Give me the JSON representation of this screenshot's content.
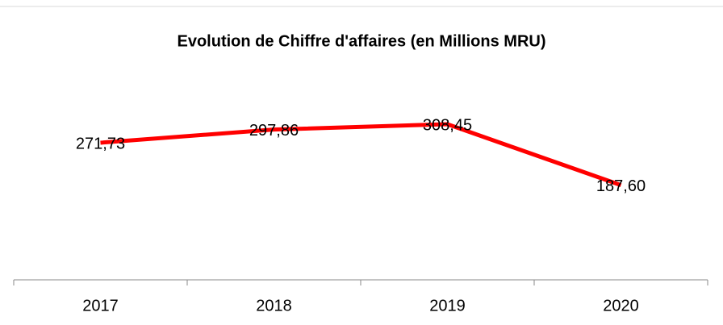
{
  "chart_data": {
    "type": "line",
    "title": "Evolution de Chiffre d'affaires (en Millions MRU)",
    "categories": [
      "2017",
      "2018",
      "2019",
      "2020"
    ],
    "values": [
      271.73,
      297.86,
      308.45,
      187.6
    ],
    "value_labels": [
      "271,73",
      "297,86",
      "308,45",
      "187,60"
    ],
    "color": "#ff0000",
    "ylim": [
      0,
      350
    ]
  }
}
